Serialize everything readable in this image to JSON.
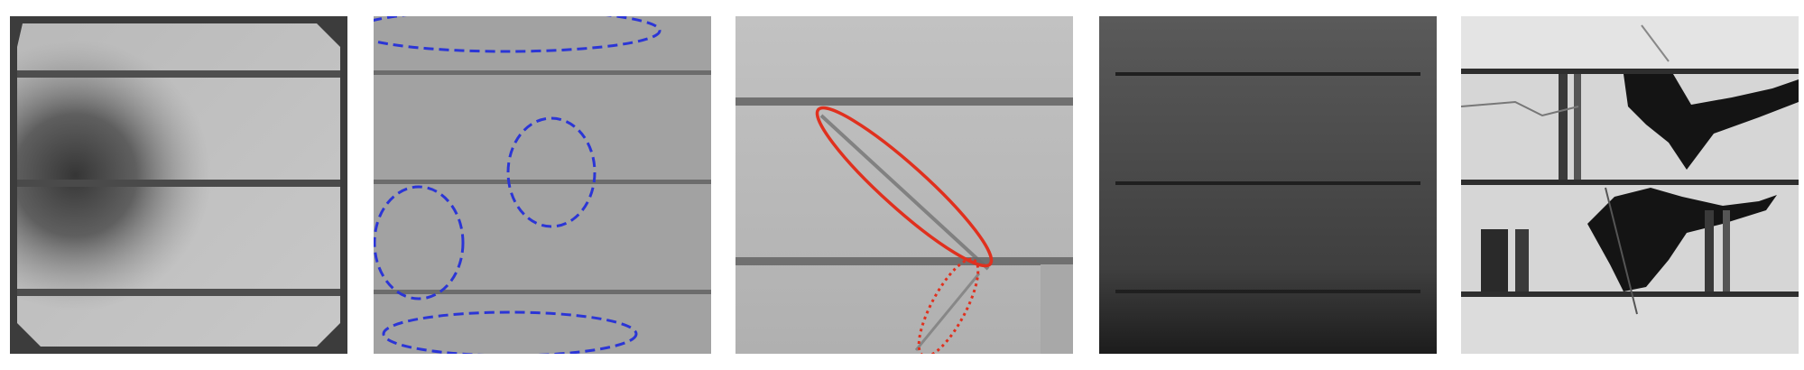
{
  "panels": [
    {
      "id": "p1",
      "condition": "dark-region",
      "busbars": 3
    },
    {
      "id": "p2",
      "condition": "highlighted-regions",
      "marker_color": "#2b35d6",
      "marker_style": "dashed",
      "busbars": 3
    },
    {
      "id": "p3",
      "condition": "crack",
      "marker_color": "#e0301e",
      "marker_styles": [
        "solid",
        "dotted"
      ],
      "busbars": 2
    },
    {
      "id": "p4",
      "condition": "uniformly-dark",
      "busbars": 3
    },
    {
      "id": "p5",
      "condition": "severely-fractured",
      "busbars": 3
    }
  ]
}
